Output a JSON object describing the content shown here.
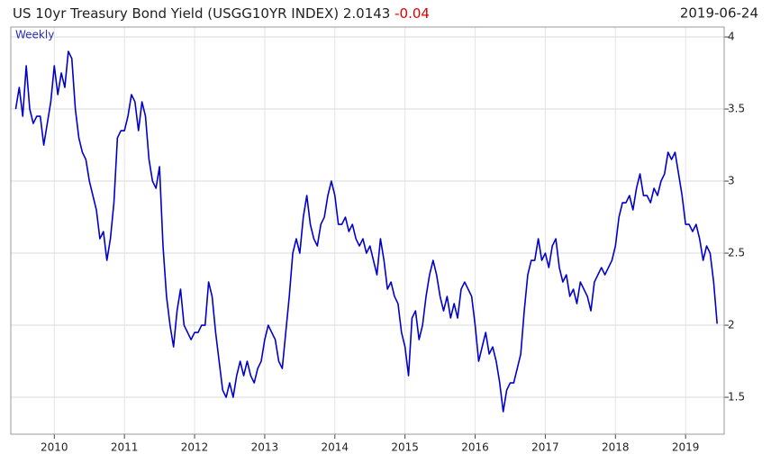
{
  "chart_data": {
    "type": "line",
    "title": "US 10yr Treasury Bond Yield (USGG10YR INDEX) 2.0143",
    "change": "-0.04",
    "date": "2019-06-24",
    "frequency": "Weekly",
    "x": [
      2009.45,
      2009.5,
      2009.55,
      2009.6,
      2009.65,
      2009.7,
      2009.75,
      2009.8,
      2009.85,
      2009.9,
      2009.95,
      2010.0,
      2010.05,
      2010.1,
      2010.15,
      2010.2,
      2010.25,
      2010.3,
      2010.35,
      2010.4,
      2010.45,
      2010.5,
      2010.55,
      2010.6,
      2010.65,
      2010.7,
      2010.75,
      2010.8,
      2010.85,
      2010.9,
      2010.95,
      2011.0,
      2011.05,
      2011.1,
      2011.15,
      2011.2,
      2011.25,
      2011.3,
      2011.35,
      2011.4,
      2011.45,
      2011.5,
      2011.55,
      2011.6,
      2011.65,
      2011.7,
      2011.75,
      2011.8,
      2011.85,
      2011.9,
      2011.95,
      2012.0,
      2012.05,
      2012.1,
      2012.15,
      2012.2,
      2012.25,
      2012.3,
      2012.35,
      2012.4,
      2012.45,
      2012.5,
      2012.55,
      2012.6,
      2012.65,
      2012.7,
      2012.75,
      2012.8,
      2012.85,
      2012.9,
      2012.95,
      2013.0,
      2013.05,
      2013.1,
      2013.15,
      2013.2,
      2013.25,
      2013.3,
      2013.35,
      2013.4,
      2013.45,
      2013.5,
      2013.55,
      2013.6,
      2013.65,
      2013.7,
      2013.75,
      2013.8,
      2013.85,
      2013.9,
      2013.95,
      2014.0,
      2014.05,
      2014.1,
      2014.15,
      2014.2,
      2014.25,
      2014.3,
      2014.35,
      2014.4,
      2014.45,
      2014.5,
      2014.55,
      2014.6,
      2014.65,
      2014.7,
      2014.75,
      2014.8,
      2014.85,
      2014.9,
      2014.95,
      2015.0,
      2015.05,
      2015.1,
      2015.15,
      2015.2,
      2015.25,
      2015.3,
      2015.35,
      2015.4,
      2015.45,
      2015.5,
      2015.55,
      2015.6,
      2015.65,
      2015.7,
      2015.75,
      2015.8,
      2015.85,
      2015.9,
      2015.95,
      2016.0,
      2016.05,
      2016.1,
      2016.15,
      2016.2,
      2016.25,
      2016.3,
      2016.35,
      2016.4,
      2016.45,
      2016.5,
      2016.55,
      2016.6,
      2016.65,
      2016.7,
      2016.75,
      2016.8,
      2016.85,
      2016.9,
      2016.95,
      2017.0,
      2017.05,
      2017.1,
      2017.15,
      2017.2,
      2017.25,
      2017.3,
      2017.35,
      2017.4,
      2017.45,
      2017.5,
      2017.55,
      2017.6,
      2017.65,
      2017.7,
      2017.75,
      2017.8,
      2017.85,
      2017.9,
      2017.95,
      2018.0,
      2018.05,
      2018.1,
      2018.15,
      2018.2,
      2018.25,
      2018.3,
      2018.35,
      2018.4,
      2018.45,
      2018.5,
      2018.55,
      2018.6,
      2018.65,
      2018.7,
      2018.75,
      2018.8,
      2018.85,
      2018.9,
      2018.95,
      2019.0,
      2019.05,
      2019.1,
      2019.15,
      2019.2,
      2019.25,
      2019.3,
      2019.35,
      2019.4,
      2019.45
    ],
    "series": [
      {
        "color": "#0000cc",
        "values": [
          3.5,
          3.65,
          3.45,
          3.8,
          3.5,
          3.4,
          3.45,
          3.45,
          3.25,
          3.4,
          3.55,
          3.8,
          3.6,
          3.75,
          3.65,
          3.9,
          3.85,
          3.5,
          3.3,
          3.2,
          3.15,
          3.0,
          2.9,
          2.8,
          2.6,
          2.65,
          2.45,
          2.6,
          2.85,
          3.3,
          3.35,
          3.35,
          3.45,
          3.6,
          3.55,
          3.35,
          3.55,
          3.45,
          3.15,
          3.0,
          2.95,
          3.1,
          2.55,
          2.2,
          2.0,
          1.85,
          2.1,
          2.25,
          2.0,
          1.95,
          1.9,
          1.95,
          1.95,
          2.0,
          2.0,
          2.3,
          2.2,
          1.95,
          1.75,
          1.55,
          1.5,
          1.6,
          1.5,
          1.65,
          1.75,
          1.65,
          1.75,
          1.65,
          1.6,
          1.7,
          1.75,
          1.9,
          2.0,
          1.95,
          1.9,
          1.75,
          1.7,
          1.95,
          2.2,
          2.5,
          2.6,
          2.5,
          2.75,
          2.9,
          2.7,
          2.6,
          2.55,
          2.7,
          2.75,
          2.9,
          3.0,
          2.9,
          2.7,
          2.7,
          2.75,
          2.65,
          2.7,
          2.6,
          2.55,
          2.6,
          2.5,
          2.55,
          2.45,
          2.35,
          2.6,
          2.45,
          2.25,
          2.3,
          2.2,
          2.15,
          1.95,
          1.85,
          1.65,
          2.05,
          2.1,
          1.9,
          2.0,
          2.2,
          2.35,
          2.45,
          2.35,
          2.2,
          2.1,
          2.2,
          2.05,
          2.15,
          2.05,
          2.25,
          2.3,
          2.25,
          2.2,
          2.0,
          1.75,
          1.85,
          1.95,
          1.8,
          1.85,
          1.75,
          1.6,
          1.4,
          1.55,
          1.6,
          1.6,
          1.7,
          1.8,
          2.1,
          2.35,
          2.45,
          2.45,
          2.6,
          2.45,
          2.5,
          2.4,
          2.55,
          2.6,
          2.4,
          2.3,
          2.35,
          2.2,
          2.25,
          2.15,
          2.3,
          2.25,
          2.2,
          2.1,
          2.3,
          2.35,
          2.4,
          2.35,
          2.4,
          2.45,
          2.55,
          2.75,
          2.85,
          2.85,
          2.9,
          2.8,
          2.95,
          3.05,
          2.9,
          2.9,
          2.85,
          2.95,
          2.9,
          3.0,
          3.05,
          3.2,
          3.15,
          3.2,
          3.05,
          2.9,
          2.7,
          2.7,
          2.65,
          2.7,
          2.6,
          2.45,
          2.55,
          2.5,
          2.3,
          2.01
        ]
      }
    ],
    "xlim": [
      2009.38,
      2019.55
    ],
    "xticks": [
      2010,
      2011,
      2012,
      2013,
      2014,
      2015,
      2016,
      2017,
      2018,
      2019
    ],
    "ylim": [
      1.244,
      4.069
    ],
    "yticks": [
      1.5,
      2,
      2.5,
      3,
      3.5,
      4
    ],
    "grid": true
  }
}
